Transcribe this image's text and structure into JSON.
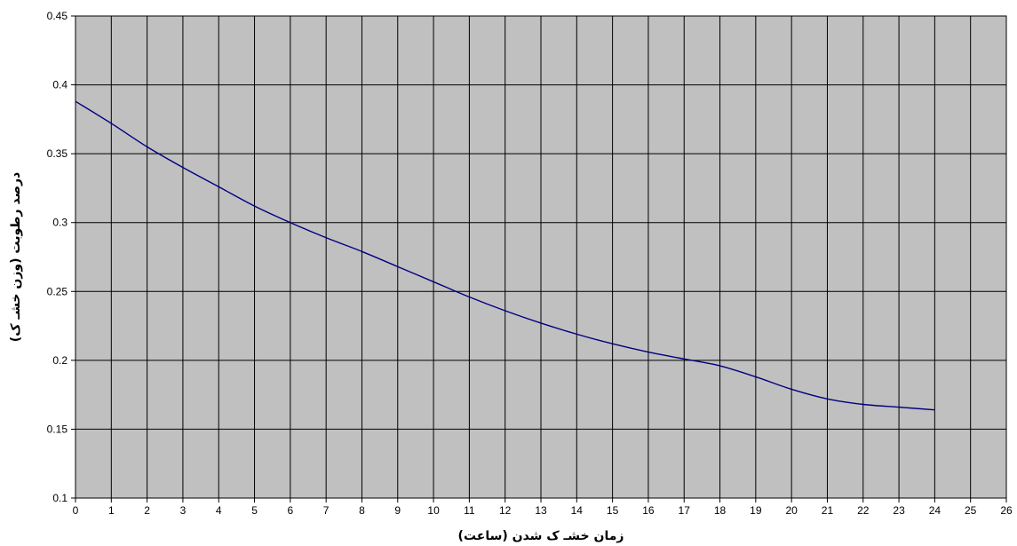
{
  "chart_data": {
    "type": "line",
    "title": "",
    "xlabel": "زمان خشـ ک شدن (ساعت)",
    "ylabel": "درصد رطوبت (وزن خشـ ک)",
    "xlim": [
      0,
      26
    ],
    "ylim": [
      0.1,
      0.45
    ],
    "x_ticks": [
      "0",
      "1",
      "2",
      "3",
      "4",
      "5",
      "6",
      "7",
      "8",
      "9",
      "10",
      "11",
      "12",
      "13",
      "14",
      "15",
      "16",
      "17",
      "18",
      "19",
      "20",
      "21",
      "22",
      "23",
      "24",
      "25",
      "26"
    ],
    "y_ticks": [
      "0.1",
      "0.15",
      "0.2",
      "0.25",
      "0.3",
      "0.35",
      "0.4",
      "0.45"
    ],
    "grid": true,
    "plot_background": "#c0c0c0",
    "series": [
      {
        "color": "#000080",
        "x": [
          0,
          1,
          2,
          3,
          4,
          5,
          6,
          7,
          8,
          9,
          10,
          11,
          12,
          13,
          14,
          15,
          16,
          17,
          18,
          19,
          20,
          21,
          22,
          23,
          24
        ],
        "y": [
          0.388,
          0.372,
          0.355,
          0.34,
          0.326,
          0.312,
          0.3,
          0.289,
          0.279,
          0.268,
          0.257,
          0.246,
          0.236,
          0.227,
          0.219,
          0.212,
          0.206,
          0.201,
          0.196,
          0.188,
          0.179,
          0.172,
          0.168,
          0.166,
          0.164
        ]
      }
    ]
  }
}
